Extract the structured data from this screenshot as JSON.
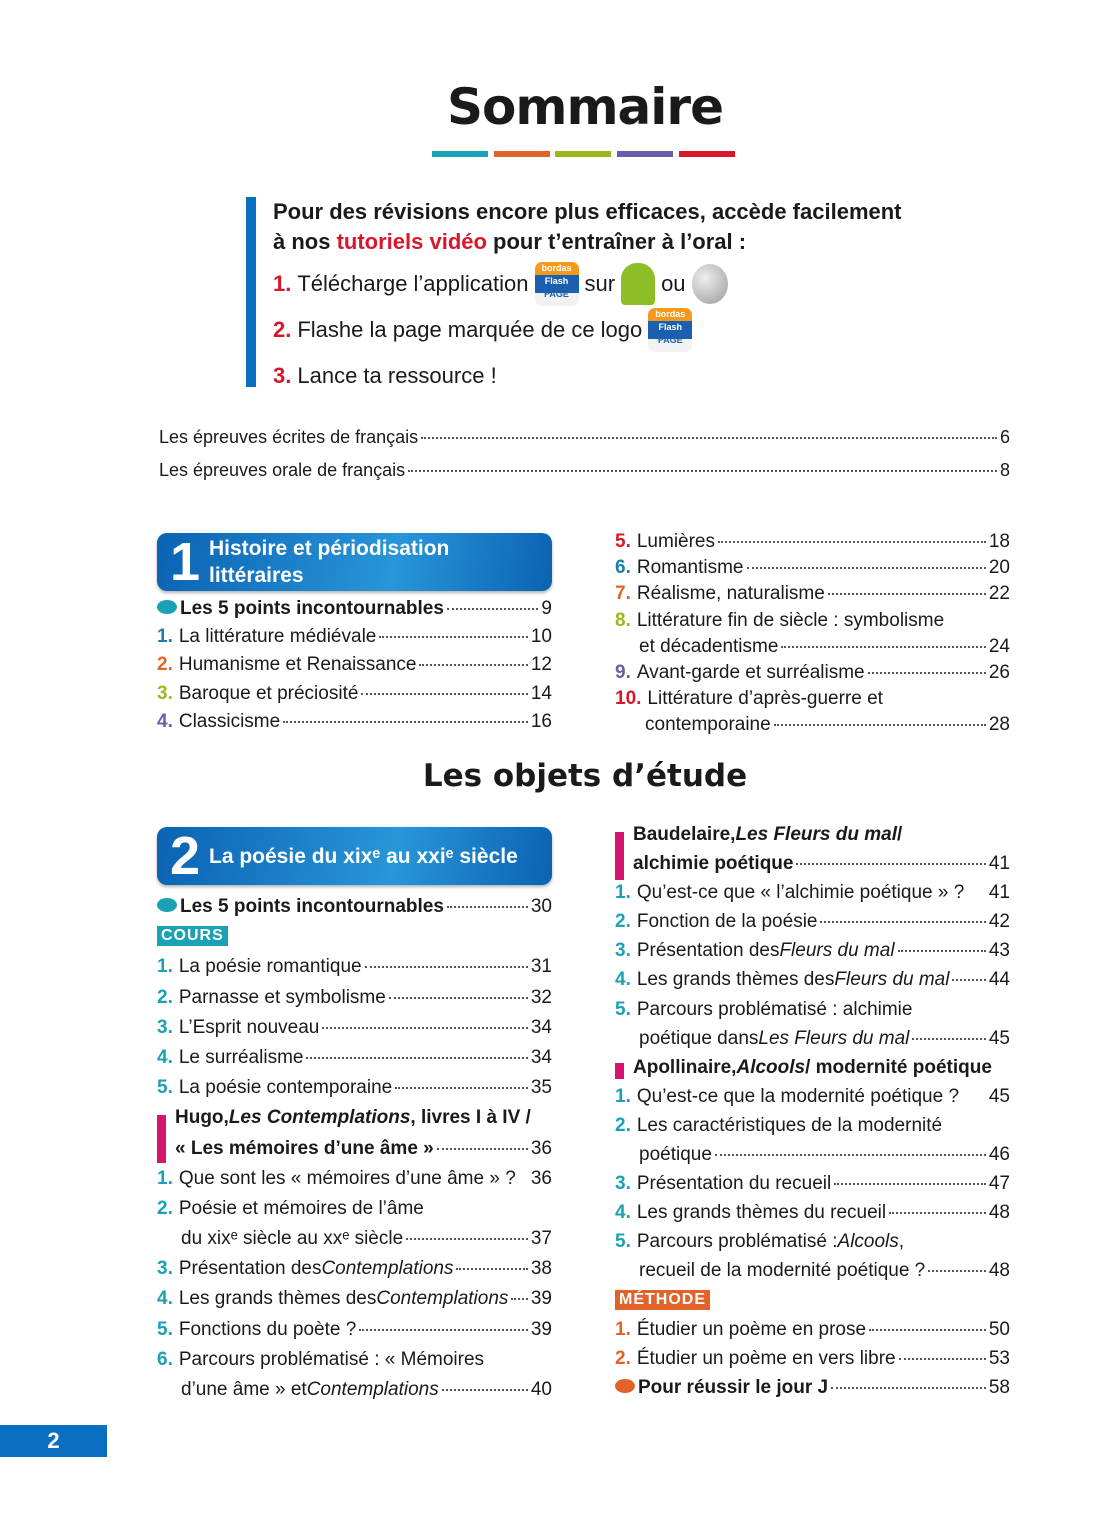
{
  "title": "Sommaire",
  "title_bar_colors": [
    "#1ba1b5",
    "#e2632a",
    "#9cb81e",
    "#6b5ea8",
    "#d6182a"
  ],
  "intro": {
    "line1": "Pour des révisions encore plus efficaces, accède facilement",
    "line2_a": "à nos ",
    "line2_b": "tutoriels vidéo",
    "line2_c": " pour t’entraîner à l’oral :",
    "steps": [
      {
        "n": "1.",
        "text": "Télécharge l’application",
        "after": "sur",
        "after2": "ou"
      },
      {
        "n": "2.",
        "text": "Flashe la page marquée de ce logo"
      },
      {
        "n": "3.",
        "text": "Lance ta ressource !"
      }
    ],
    "logo_text": [
      "bordas",
      "Flash",
      "PAGE"
    ],
    "icons": [
      "flashpage-logo-icon",
      "android-icon",
      "apple-icon"
    ]
  },
  "front": [
    {
      "t": "Les épreuves écrites de français",
      "p": "6"
    },
    {
      "t": "Les épreuves orale de français",
      "p": "8"
    }
  ],
  "section1": {
    "num": "1",
    "title": [
      "Histoire et périodisation",
      "littéraires"
    ]
  },
  "section2": {
    "num": "2",
    "title": "La poésie du xixᵉ au xxiᵉ siècle"
  },
  "heading2": "Les objets d’étude",
  "colors": {
    "teal": "#1ba1b5",
    "orange": "#e2632a",
    "green": "#9cb81e",
    "purple": "#6b5ea8",
    "red": "#d6182a",
    "blue": "#1a7fae",
    "pink": "#d6136f",
    "cours": "#1ba1b5",
    "methode": "#e2632a"
  },
  "cols": {
    "c1": [
      {
        "dot": "teal",
        "lines": [
          [
            {
              "t": "Les 5 points incontournables",
              "b": true
            }
          ]
        ],
        "p": "9"
      },
      {
        "n": "1.",
        "c": "blue",
        "lines": [
          [
            {
              "t": "La littérature médiévale"
            }
          ]
        ],
        "p": "10"
      },
      {
        "n": "2.",
        "c": "orange",
        "lines": [
          [
            {
              "t": "Humanisme et Renaissance"
            }
          ]
        ],
        "p": "12"
      },
      {
        "n": "3.",
        "c": "green",
        "lines": [
          [
            {
              "t": "Baroque et préciosité"
            }
          ]
        ],
        "p": "14"
      },
      {
        "n": "4.",
        "c": "purple",
        "lines": [
          [
            {
              "t": "Classicisme"
            }
          ]
        ],
        "p": "16"
      }
    ],
    "c2": [
      {
        "n": "5.",
        "c": "red",
        "lines": [
          [
            {
              "t": "Lumières"
            }
          ]
        ],
        "p": "18"
      },
      {
        "n": "6.",
        "c": "blue",
        "lines": [
          [
            {
              "t": "Romantisme"
            }
          ]
        ],
        "p": "20"
      },
      {
        "n": "7.",
        "c": "orange",
        "lines": [
          [
            {
              "t": "Réalisme, naturalisme"
            }
          ]
        ],
        "p": "22"
      },
      {
        "n": "8.",
        "c": "green",
        "lines": [
          [
            {
              "t": "Littérature fin de siècle : symbolisme"
            }
          ],
          [
            {
              "t": "et décadentisme"
            }
          ]
        ],
        "p": "24"
      },
      {
        "n": "9.",
        "c": "purple",
        "lines": [
          [
            {
              "t": "Avant-garde et surréalisme"
            }
          ]
        ],
        "p": "26"
      },
      {
        "n": "10.",
        "c": "red",
        "lines": [
          [
            {
              "t": "Littérature d’après-guerre et"
            }
          ],
          [
            {
              "t": "contemporaine"
            }
          ]
        ],
        "p": "28"
      }
    ],
    "c3": [
      {
        "dot": "teal",
        "lines": [
          [
            {
              "t": "Les 5 points incontournables",
              "b": true
            }
          ]
        ],
        "p": "30"
      },
      {
        "tag": "COURS",
        "tc": "cours"
      },
      {
        "n": "1.",
        "c": "teal",
        "lines": [
          [
            {
              "t": "La poésie romantique"
            }
          ]
        ],
        "p": "31"
      },
      {
        "n": "2.",
        "c": "teal",
        "lines": [
          [
            {
              "t": "Parnasse et symbolisme"
            }
          ]
        ],
        "p": "32"
      },
      {
        "n": "3.",
        "c": "teal",
        "lines": [
          [
            {
              "t": "L’Esprit nouveau"
            }
          ]
        ],
        "p": "34"
      },
      {
        "n": "4.",
        "c": "teal",
        "lines": [
          [
            {
              "t": "Le surréalisme"
            }
          ]
        ],
        "p": "34"
      },
      {
        "n": "5.",
        "c": "teal",
        "lines": [
          [
            {
              "t": "La poésie contemporaine"
            }
          ]
        ],
        "p": "35"
      },
      {
        "pink": true,
        "lines": [
          [
            {
              "t": "Hugo, ",
              "b": true
            },
            {
              "t": "Les Contemplations",
              "b": true,
              "i": true
            },
            {
              "t": ", livres I à IV /",
              "b": true
            }
          ],
          [
            {
              "t": "« Les mémoires d’une âme »",
              "b": true
            }
          ]
        ],
        "p": "36"
      },
      {
        "n": "1.",
        "c": "teal",
        "lines": [
          [
            {
              "t": "Que sont les « mémoires d’une âme » ?"
            }
          ]
        ],
        "p": "36",
        "nolead": true
      },
      {
        "n": "2.",
        "c": "teal",
        "lines": [
          [
            {
              "t": "Poésie et mémoires de l’âme"
            }
          ],
          [
            {
              "t": "du xixᵉ siècle au xxᵉ siècle"
            }
          ]
        ],
        "p": "37"
      },
      {
        "n": "3.",
        "c": "teal",
        "lines": [
          [
            {
              "t": "Présentation des "
            },
            {
              "t": "Contemplations",
              "i": true
            }
          ]
        ],
        "p": "38"
      },
      {
        "n": "4.",
        "c": "teal",
        "lines": [
          [
            {
              "t": "Les grands thèmes des "
            },
            {
              "t": "Contemplations",
              "i": true
            }
          ]
        ],
        "p": "39"
      },
      {
        "n": "5.",
        "c": "teal",
        "lines": [
          [
            {
              "t": "Fonctions du poète ?"
            }
          ]
        ],
        "p": "39"
      },
      {
        "n": "6.",
        "c": "teal",
        "lines": [
          [
            {
              "t": "Parcours problématisé : « Mémoires"
            }
          ],
          [
            {
              "t": "d’une âme » et "
            },
            {
              "t": "Contemplations",
              "i": true
            }
          ]
        ],
        "p": "40"
      }
    ],
    "c4": [
      {
        "pink": true,
        "lines": [
          [
            {
              "t": "Baudelaire, ",
              "b": true
            },
            {
              "t": "Les Fleurs du mal",
              "b": true,
              "i": true
            },
            {
              "t": " /",
              "b": true
            }
          ],
          [
            {
              "t": "alchimie poétique",
              "b": true
            }
          ]
        ],
        "p": "41"
      },
      {
        "n": "1.",
        "c": "teal",
        "lines": [
          [
            {
              "t": "Qu’est-ce que « l’alchimie poétique » ?"
            }
          ]
        ],
        "p": "41",
        "nolead": true
      },
      {
        "n": "2.",
        "c": "teal",
        "lines": [
          [
            {
              "t": "Fonction de la poésie"
            }
          ]
        ],
        "p": "42"
      },
      {
        "n": "3.",
        "c": "teal",
        "lines": [
          [
            {
              "t": "Présentation des "
            },
            {
              "t": "Fleurs du mal",
              "i": true
            }
          ]
        ],
        "p": "43"
      },
      {
        "n": "4.",
        "c": "teal",
        "lines": [
          [
            {
              "t": "Les grands thèmes des "
            },
            {
              "t": "Fleurs du mal",
              "i": true
            }
          ]
        ],
        "p": "44"
      },
      {
        "n": "5.",
        "c": "teal",
        "lines": [
          [
            {
              "t": "Parcours problématisé : alchimie"
            }
          ],
          [
            {
              "t": "poétique dans "
            },
            {
              "t": "Les Fleurs du mal",
              "i": true
            }
          ]
        ],
        "p": "45"
      },
      {
        "pink": true,
        "lines": [
          [
            {
              "t": "Apollinaire, ",
              "b": true
            },
            {
              "t": "Alcools",
              "b": true,
              "i": true
            },
            {
              "t": " / modernité poétique",
              "b": true
            }
          ]
        ]
      },
      {
        "n": "1.",
        "c": "teal",
        "lines": [
          [
            {
              "t": "Qu’est-ce que la modernité poétique ?"
            }
          ]
        ],
        "p": "45",
        "nolead": true
      },
      {
        "n": "2.",
        "c": "teal",
        "lines": [
          [
            {
              "t": "Les caractéristiques de la modernité"
            }
          ],
          [
            {
              "t": "poétique"
            }
          ]
        ],
        "p": "46"
      },
      {
        "n": "3.",
        "c": "teal",
        "lines": [
          [
            {
              "t": "Présentation du recueil"
            }
          ]
        ],
        "p": "47"
      },
      {
        "n": "4.",
        "c": "teal",
        "lines": [
          [
            {
              "t": "Les grands thèmes du recueil"
            }
          ]
        ],
        "p": "48"
      },
      {
        "n": "5.",
        "c": "teal",
        "lines": [
          [
            {
              "t": "Parcours problématisé : "
            },
            {
              "t": "Alcools",
              "i": true
            },
            {
              "t": ","
            }
          ],
          [
            {
              "t": "recueil de la modernité poétique ?"
            }
          ]
        ],
        "p": "48"
      },
      {
        "tag": "MÉTHODE",
        "tc": "methode"
      },
      {
        "n": "1.",
        "c": "orange",
        "lines": [
          [
            {
              "t": "Étudier un poème en prose"
            }
          ]
        ],
        "p": "50"
      },
      {
        "n": "2.",
        "c": "orange",
        "lines": [
          [
            {
              "t": "Étudier un poème en vers libre"
            }
          ]
        ],
        "p": "53"
      },
      {
        "dot": "orange",
        "lines": [
          [
            {
              "t": "Pour réussir le jour J",
              "b": true
            }
          ]
        ],
        "p": "58"
      }
    ]
  },
  "page_number": "2"
}
